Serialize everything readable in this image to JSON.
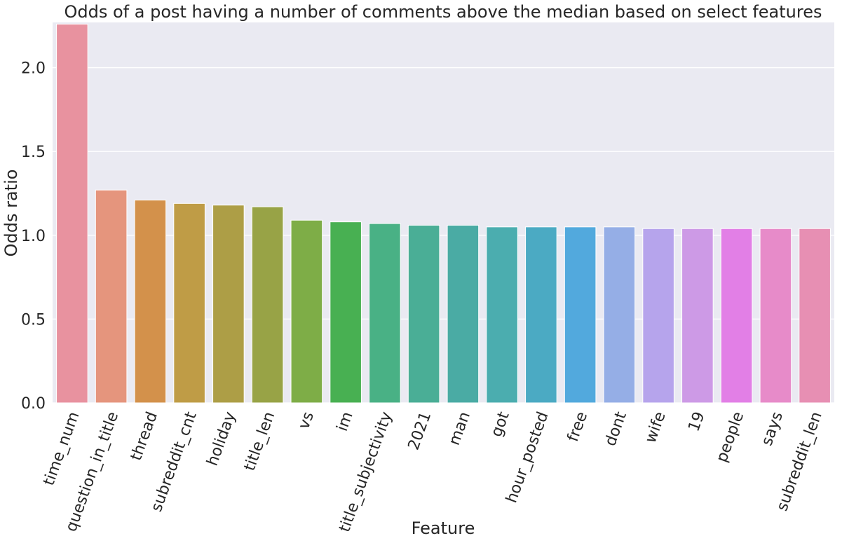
{
  "chart_data": {
    "type": "bar",
    "title": "Odds of a post having a number of comments above the median based on select features",
    "xlabel": "Feature",
    "ylabel": "Odds ratio",
    "ylim": [
      0,
      2.27
    ],
    "yticks": [
      "0.0",
      "0.5",
      "1.0",
      "1.5",
      "2.0"
    ],
    "grid": true,
    "background": "#eaeaf2",
    "categories": [
      "time_num",
      "question_in_title",
      "thread",
      "subreddit_cnt",
      "holiday",
      "title_len",
      "vs",
      "im",
      "title_subjectivity",
      "2021",
      "man",
      "got",
      "hour_posted",
      "free",
      "dont",
      "wife",
      "19",
      "people",
      "says",
      "subreddit_len"
    ],
    "values": [
      2.26,
      1.27,
      1.21,
      1.19,
      1.18,
      1.17,
      1.09,
      1.08,
      1.07,
      1.06,
      1.06,
      1.05,
      1.05,
      1.05,
      1.05,
      1.04,
      1.04,
      1.04,
      1.04,
      1.04
    ],
    "colors": [
      "#e8929f",
      "#e5957d",
      "#d3914b",
      "#bf9c46",
      "#ad9e46",
      "#98a346",
      "#7ead47",
      "#48b052",
      "#49b185",
      "#4aae96",
      "#4aaba4",
      "#4badaf",
      "#4baac3",
      "#52a9dd",
      "#95aee6",
      "#b6a4ec",
      "#cd9ae6",
      "#e27fe6",
      "#e78bc9",
      "#e78fb3"
    ]
  }
}
